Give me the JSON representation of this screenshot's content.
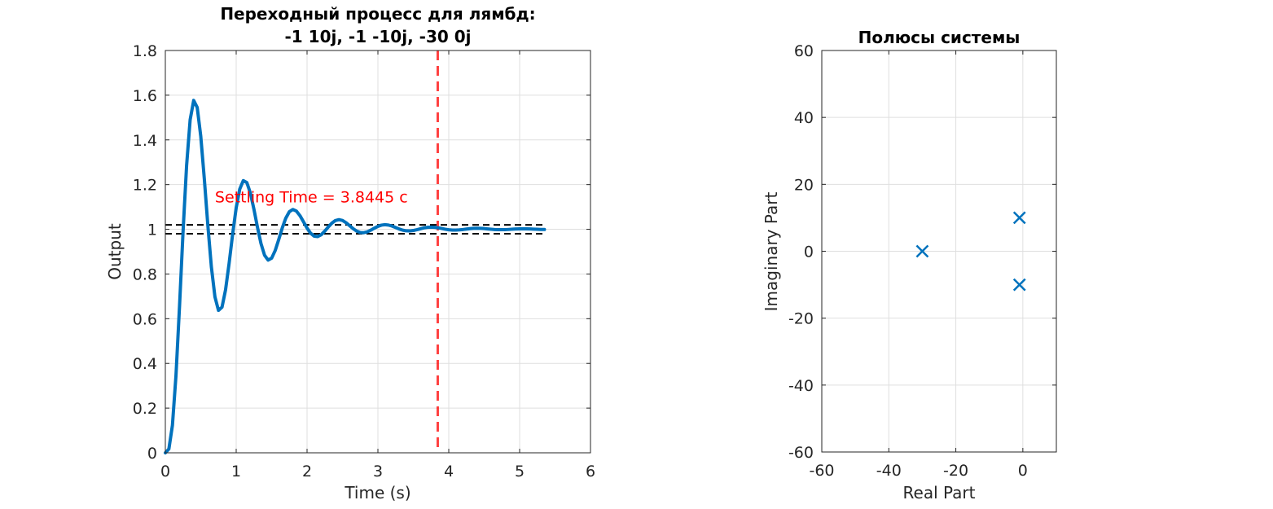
{
  "chart_data": [
    {
      "type": "line",
      "title_lines": [
        "Переходный процесс для лямбд:",
        "-1 10j, -1 -10j, -30 0j"
      ],
      "xlabel": "Time (s)",
      "ylabel": "Output",
      "xlim": [
        0,
        6
      ],
      "ylim": [
        0,
        1.8
      ],
      "xticks": [
        0,
        1,
        2,
        3,
        4,
        5,
        6
      ],
      "xticklabels": [
        "0",
        "1",
        "2",
        "3",
        "4",
        "5",
        "6"
      ],
      "yticks": [
        0,
        0.2,
        0.4,
        0.6,
        0.8,
        1,
        1.2,
        1.4,
        1.6,
        1.8
      ],
      "yticklabels": [
        "0",
        "0.2",
        "0.4",
        "0.6",
        "0.8",
        "1",
        "1.2",
        "1.4",
        "1.6",
        "1.8"
      ],
      "grid": true,
      "series": [
        {
          "color": "#0072BD",
          "x": [
            0,
            0.05,
            0.1,
            0.15,
            0.2,
            0.25,
            0.3,
            0.35,
            0.4,
            0.45,
            0.5,
            0.55,
            0.6,
            0.65,
            0.7,
            0.75,
            0.8,
            0.85,
            0.9,
            0.95,
            1.0,
            1.05,
            1.1,
            1.15,
            1.2,
            1.25,
            1.3,
            1.35,
            1.4,
            1.45,
            1.5,
            1.55,
            1.6,
            1.65,
            1.7,
            1.75,
            1.8,
            1.85,
            1.9,
            1.95,
            2.0,
            2.05,
            2.1,
            2.15,
            2.2,
            2.25,
            2.3,
            2.35,
            2.4,
            2.45,
            2.5,
            2.55,
            2.6,
            2.65,
            2.7,
            2.75,
            2.8,
            2.85,
            2.9,
            2.95,
            3.0,
            3.05,
            3.1,
            3.15,
            3.2,
            3.25,
            3.3,
            3.35,
            3.4,
            3.45,
            3.5,
            3.55,
            3.6,
            3.65,
            3.7,
            3.75,
            3.8,
            3.85,
            3.9,
            3.95,
            4.0,
            4.05,
            4.1,
            4.15,
            4.2,
            4.25,
            4.3,
            4.35,
            4.4,
            4.45,
            4.5,
            4.55,
            4.6,
            4.65,
            4.7,
            4.75,
            4.8,
            4.85,
            4.9,
            4.95,
            5.0,
            5.05,
            5.1,
            5.15,
            5.2,
            5.25,
            5.3,
            5.35
          ],
          "y": [
            0,
            0.0171,
            0.1227,
            0.3449,
            0.6541,
            0.9893,
            1.285,
            1.4897,
            1.5766,
            1.5451,
            1.4164,
            1.2263,
            1.0176,
            0.8307,
            0.6978,
            0.6373,
            0.6518,
            0.7295,
            0.8477,
            0.9788,
            1.0962,
            1.1796,
            1.2178,
            1.2094,
            1.1624,
            1.0902,
            1.0092,
            0.9361,
            0.8843,
            0.8621,
            0.8707,
            0.9047,
            0.9539,
            1.0059,
            1.0499,
            1.0786,
            1.0887,
            1.0814,
            1.061,
            1.0335,
            1.0054,
            0.9826,
            0.9693,
            0.9673,
            0.9758,
            0.9917,
            1.0105,
            1.0276,
            1.0392,
            1.0432,
            1.0395,
            1.0297,
            1.0165,
            1.003,
            0.9921,
            0.9858,
            0.9849,
            0.9888,
            0.9962,
            1.005,
            1.0131,
            1.0186,
            1.0206,
            1.0189,
            1.0143,
            1.0079,
            1.0014,
            0.9962,
            0.9932,
            0.9927,
            0.9946,
            0.9981,
            1.0024,
            1.0063,
            1.0089,
            1.0098,
            1.009,
            1.0067,
            1.0036,
            1.0005,
            0.998,
            0.9966,
            0.9964,
            0.9973,
            0.999,
            1.0011,
            1.003,
            1.0043,
            1.0047,
            1.0043,
            1.0032,
            1.0017,
            1.0002,
            0.999,
            0.9983,
            0.9982,
            0.9986,
            0.9995,
            1.0005,
            1.0014,
            1.002,
            1.0022,
            1.002,
            1.0015,
            1.0008,
            1.0001,
            0.9995,
            0.9992
          ]
        }
      ],
      "tolerance_band": [
        0.98,
        1.02
      ],
      "tolerance_band_color": "#000000",
      "settling_time": 3.8445,
      "settling_line_color": "#FF0000",
      "annotation": {
        "text": "Settling Time = 3.8445 c",
        "x": 0.7,
        "y": 1.12,
        "color": "#FF0000"
      }
    },
    {
      "type": "scatter",
      "title": "Полюсы системы",
      "xlabel": "Real Part",
      "ylabel": "Imaginary Part",
      "xlim": [
        -60,
        10
      ],
      "ylim": [
        -60,
        60
      ],
      "xticks": [
        -60,
        -40,
        -20,
        0
      ],
      "xticklabels": [
        "-60",
        "-40",
        "-20",
        "0"
      ],
      "yticks": [
        -60,
        -40,
        -20,
        0,
        20,
        40,
        60
      ],
      "yticklabels": [
        "-60",
        "-40",
        "-20",
        "0",
        "20",
        "40",
        "60"
      ],
      "grid": true,
      "marker": "x",
      "color": "#0072BD",
      "points": [
        {
          "x": -1,
          "y": 10
        },
        {
          "x": -1,
          "y": -10
        },
        {
          "x": -30,
          "y": 0
        }
      ]
    }
  ]
}
